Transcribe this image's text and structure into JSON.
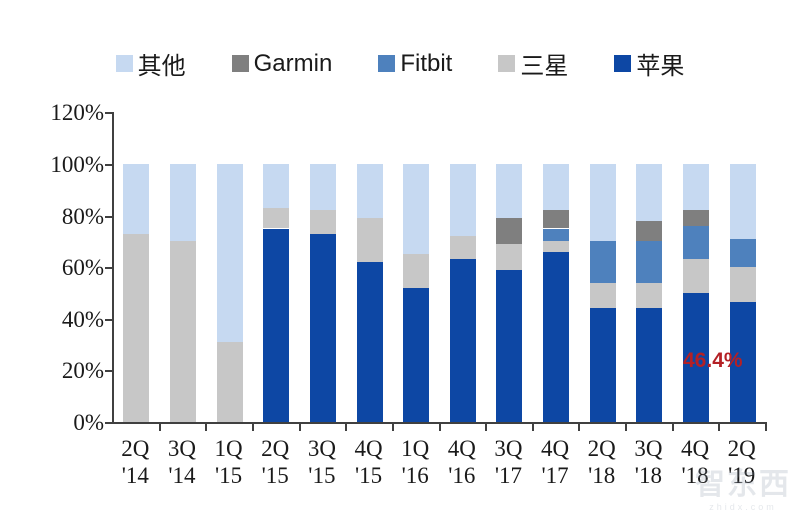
{
  "legend": {
    "items": [
      {
        "label": "其他",
        "color": "#c6d9f1"
      },
      {
        "label": "Garmin",
        "color": "#7f7f7f"
      },
      {
        "label": "Fitbit",
        "color": "#4e81bd"
      },
      {
        "label": "三星",
        "color": "#c7c7c7"
      },
      {
        "label": "苹果",
        "color": "#0d47a4"
      }
    ]
  },
  "chart_data": {
    "type": "bar",
    "stacked": true,
    "unit": "percent",
    "title": "",
    "xlabel": "",
    "ylabel": "",
    "ylim": [
      0,
      120
    ],
    "grid": false,
    "legend_position": "top-center",
    "categories": [
      "2Q '14",
      "3Q '14",
      "1Q '15",
      "2Q '15",
      "3Q '15",
      "4Q '15",
      "1Q '16",
      "4Q '16",
      "3Q '17",
      "4Q '17",
      "2Q '18",
      "3Q '18",
      "4Q '18",
      "2Q '19"
    ],
    "series": [
      {
        "name": "苹果",
        "color": "#0d47a4",
        "values": [
          0,
          0,
          0,
          75,
          73,
          62,
          52,
          63,
          59,
          66,
          44,
          44,
          50,
          46.4
        ]
      },
      {
        "name": "三星",
        "color": "#c7c7c7",
        "values": [
          73,
          70,
          31,
          8,
          9,
          17,
          13,
          9,
          10,
          4,
          10,
          10,
          13,
          13.6
        ]
      },
      {
        "name": "Fitbit",
        "color": "#4e81bd",
        "values": [
          0,
          0,
          0,
          0,
          0,
          0,
          0,
          0,
          0,
          5,
          16,
          16,
          13,
          11
        ]
      },
      {
        "name": "Garmin",
        "color": "#7f7f7f",
        "values": [
          0,
          0,
          0,
          0,
          0,
          0,
          0,
          0,
          10,
          7,
          0,
          8,
          6,
          0
        ]
      },
      {
        "name": "其他",
        "color": "#c6d9f1",
        "values": [
          27,
          30,
          69,
          17,
          18,
          21,
          35,
          28,
          21,
          18,
          30,
          22,
          18,
          29
        ]
      }
    ],
    "yticks": [
      {
        "label": "120%",
        "value": 120
      },
      {
        "label": "100%",
        "value": 100
      },
      {
        "label": "80%",
        "value": 80
      },
      {
        "label": "60%",
        "value": 60
      },
      {
        "label": "40%",
        "value": 40
      },
      {
        "label": "20%",
        "value": 20
      },
      {
        "label": "0%",
        "value": 0
      }
    ],
    "annotation": {
      "text": "46.4%",
      "color": "#b42025",
      "series": "苹果",
      "category": "2Q '19"
    }
  },
  "watermark": {
    "text": "智东西",
    "subtext": "zhidx.com"
  }
}
